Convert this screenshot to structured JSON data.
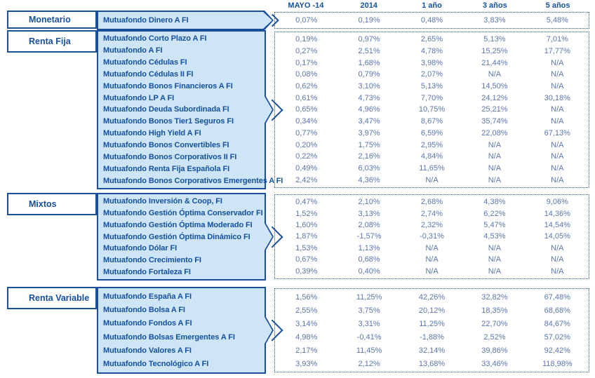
{
  "table": {
    "columns": [
      "MAYO -14",
      "2014",
      "1 año",
      "3 años",
      "5 años"
    ],
    "sections": [
      {
        "category": "Monetario",
        "funds": [
          {
            "name": "Mutuafondo Dinero A FI",
            "values": [
              "0,07%",
              "0,19%",
              "0,48%",
              "3,83%",
              "5,48%"
            ]
          }
        ]
      },
      {
        "category": "Renta Fija",
        "funds": [
          {
            "name": "Mutuafondo Corto Plazo A FI",
            "values": [
              "0,19%",
              "0,97%",
              "2,65%",
              "5,13%",
              "7,01%"
            ]
          },
          {
            "name": "Mutuafondo A FI",
            "values": [
              "0,27%",
              "2,51%",
              "4,78%",
              "15,25%",
              "17,77%"
            ]
          },
          {
            "name": "Mutuafondo Cédulas FI",
            "values": [
              "0,17%",
              "1,68%",
              "3,98%",
              "21,44%",
              "N/A"
            ]
          },
          {
            "name": "Mutuafondo Cédulas II FI",
            "values": [
              "0,08%",
              "0,79%",
              "2,07%",
              "N/A",
              "N/A"
            ]
          },
          {
            "name": "Mutuafondo Bonos Financieros A FI",
            "values": [
              "0,62%",
              "3,10%",
              "5,13%",
              "14,50%",
              "N/A"
            ]
          },
          {
            "name": "Mutuafondo LP A FI",
            "values": [
              "0,61%",
              "4,73%",
              "7,70%",
              "24,12%",
              "30,18%"
            ]
          },
          {
            "name": "Mutuafondo Deuda Subordinada FI",
            "values": [
              "0,65%",
              "4,96%",
              "10,75%",
              "25,21%",
              "N/A"
            ]
          },
          {
            "name": "Mutuafondo Bonos Tier1 Seguros FI",
            "values": [
              "0,34%",
              "3,47%",
              "8,67%",
              "35,74%",
              "N/A"
            ]
          },
          {
            "name": "Mutuafondo High Yield A FI",
            "values": [
              "0,77%",
              "3,97%",
              "6,59%",
              "22,08%",
              "67,13%"
            ]
          },
          {
            "name": "Mutuafondo Bonos Convertibles FI",
            "values": [
              "0,20%",
              "1,75%",
              "2,95%",
              "N/A",
              "N/A"
            ]
          },
          {
            "name": "Mutuafondo Bonos Corporativos II FI",
            "values": [
              "0,22%",
              "2,16%",
              "4,84%",
              "N/A",
              "N/A"
            ]
          },
          {
            "name": "Mutuafondo Renta Fija Española FI",
            "values": [
              "0,49%",
              "6,03%",
              "11,65%",
              "N/A",
              "N/A"
            ]
          },
          {
            "name": "Mutuafondo Bonos Corporativos Emergentes A FI",
            "values": [
              "2,42%",
              "4,36%",
              "N/A",
              "N/A",
              "N/A"
            ]
          }
        ]
      },
      {
        "category": "Mixtos",
        "funds": [
          {
            "name": "Mutuafondo Inversión & Coop, FI",
            "values": [
              "0,47%",
              "2,10%",
              "2,68%",
              "4,38%",
              "9,06%"
            ]
          },
          {
            "name": "Mutuafondo Gestión Óptima Conservador FI",
            "values": [
              "1,52%",
              "3,13%",
              "2,74%",
              "6,22%",
              "14,36%"
            ]
          },
          {
            "name": "Mutuafondo Gestión Óptima Moderado FI",
            "values": [
              "1,60%",
              "2,08%",
              "2,32%",
              "5,47%",
              "14,54%"
            ]
          },
          {
            "name": "Mutuafondo Gestión Óptima Dinámico FI",
            "values": [
              "1,87%",
              "-1,57%",
              "-0,31%",
              "4,53%",
              "14,05%"
            ]
          },
          {
            "name": "Mutuafondo Dólar FI",
            "values": [
              "1,53%",
              "1,13%",
              "N/A",
              "N/A",
              "N/A"
            ]
          },
          {
            "name": "Mutuafondo Crecimiento FI",
            "values": [
              "0,67%",
              "0,68%",
              "N/A",
              "N/A",
              "N/A"
            ]
          },
          {
            "name": "Mutuafondo Fortaleza FI",
            "values": [
              "0,39%",
              "0,40%",
              "N/A",
              "N/A",
              "N/A"
            ]
          }
        ]
      },
      {
        "category": "Renta Variable",
        "funds": [
          {
            "name": "Mutuafondo España A FI",
            "values": [
              "1,56%",
              "11,25%",
              "42,26%",
              "32,82%",
              "67,48%"
            ]
          },
          {
            "name": "Mutuafondo Bolsa A FI",
            "values": [
              "2,55%",
              "3,75%",
              "20,12%",
              "18,35%",
              "68,68%"
            ]
          },
          {
            "name": "Mutuafondo Fondos A FI",
            "values": [
              "3,14%",
              "3,31%",
              "11,25%",
              "22,70%",
              "84,67%"
            ]
          },
          {
            "name": "Mutuafondo Bolsas Emergentes A FI",
            "values": [
              "4,98%",
              "-0,41%",
              "-1,88%",
              "2,52%",
              "57,02%"
            ]
          },
          {
            "name": "Mutuafondo Valores A FI",
            "values": [
              "2,17%",
              "11,45%",
              "32,14%",
              "39,86%",
              "92,42%"
            ]
          },
          {
            "name": "Mutuafondo Tecnológico A FI",
            "values": [
              "3,93%",
              "2,12%",
              "13,68%",
              "33,46%",
              "118,98%"
            ]
          }
        ]
      }
    ]
  },
  "colors": {
    "navy_border": "#1a4f9b",
    "text_navy": "#14509e",
    "value_blue": "#5c76ad",
    "panel_fill": "#cde5f6"
  }
}
